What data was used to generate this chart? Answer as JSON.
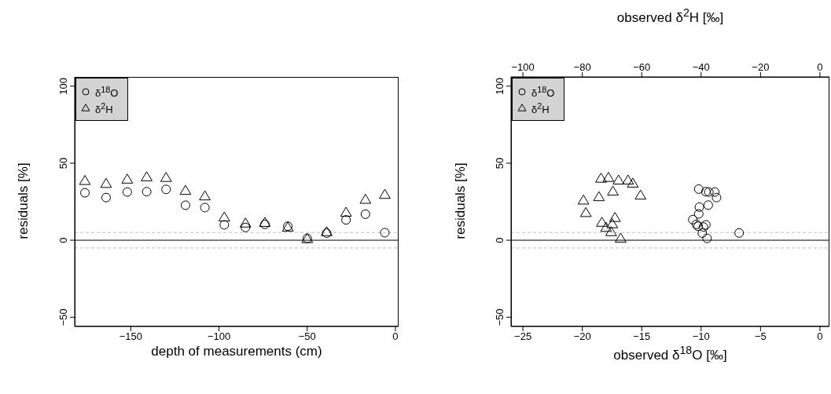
{
  "chart_data": [
    {
      "type": "scatter",
      "xlabel": "depth of measurements (cm)",
      "ylabel": "residuals [%]",
      "xlim": [
        -181.8,
        1.8
      ],
      "xticks": [
        -150,
        -100,
        -50,
        0
      ],
      "ylim": [
        -56,
        106
      ],
      "yticks": [
        -50,
        0,
        50,
        100
      ],
      "legend": "top left",
      "series": [
        {
          "name": "δ$^{18}$O",
          "color": "#000000",
          "marker": "circle",
          "x": [
            -176,
            -164,
            -152,
            -141,
            -130,
            -119,
            -108,
            -97,
            -85,
            -74,
            -61,
            -50,
            -39,
            -28,
            -17,
            -6
          ],
          "values": [
            30.8,
            27.7,
            31.3,
            31.5,
            33.0,
            22.7,
            21.2,
            10.0,
            8.3,
            10.3,
            9.1,
            1.2,
            4.6,
            13.2,
            16.9,
            4.9
          ]
        },
        {
          "name": "δ$^{2}$H",
          "color": "#000000",
          "marker": "triangle",
          "x": [
            -176,
            -164,
            -152,
            -141,
            -130,
            -119,
            -108,
            -97,
            -85,
            -74,
            -61,
            -50,
            -39,
            -28,
            -17,
            -6
          ],
          "values": [
            38.4,
            36.5,
            39.3,
            40.8,
            40.4,
            32.0,
            28.4,
            14.7,
            10.8,
            11.2,
            8.1,
            0.7,
            5.2,
            17.8,
            26.2,
            29.4
          ]
        }
      ],
      "ref_lines": [
        {
          "axis": "y",
          "value": 0,
          "color": "#000000",
          "line_style": "solid"
        },
        {
          "axis": "y",
          "value": 5,
          "color": "#bebebe",
          "line_style": "dashed"
        },
        {
          "axis": "y",
          "value": -5,
          "color": "#bebebe",
          "line_style": "dashed"
        }
      ]
    },
    {
      "type": "scatter",
      "xlabel": "observed δ$^{18}$O [‰]",
      "x2label": "observed δ$^{2}$H [‰]",
      "ylabel": "residuals [%]",
      "xlim": [
        -26,
        0.8
      ],
      "xticks": [
        -25,
        -20,
        -15,
        -10,
        -5,
        0
      ],
      "x2lim": [
        -104,
        3.2
      ],
      "x2ticks": [
        -100,
        -80,
        -60,
        -40,
        -20,
        0
      ],
      "ylim": [
        -56,
        106
      ],
      "yticks": [
        -50,
        0,
        50,
        100
      ],
      "legend": "top left",
      "series": [
        {
          "name": "δ$^{18}$O",
          "color": "#000000",
          "marker": "circle",
          "x": [
            -10.2,
            -9.6,
            -9.35,
            -8.85,
            -8.7,
            -9.4,
            -10.15,
            -10.2,
            -10.7,
            -10.4,
            -10.25,
            -9.8,
            -9.6,
            -9.9,
            -9.5,
            -6.8
          ],
          "values": [
            33.2,
            31.5,
            31.3,
            31.3,
            27.7,
            22.8,
            21.5,
            17.1,
            13.4,
            10.3,
            9.1,
            8.6,
            10.0,
            4.6,
            1.2,
            4.7
          ]
        },
        {
          "name": "δ$^{2}$H",
          "color": "#000000",
          "marker": "triangle",
          "axis": "x2",
          "x": [
            -73.7,
            -71.2,
            -67.8,
            -64.6,
            -63.0,
            -69.7,
            -74.4,
            -60.4,
            -79.6,
            -78.8,
            -73.4,
            -69.0,
            -69.9,
            -72.0,
            -70.3,
            -67.1
          ],
          "values": [
            39.9,
            40.4,
            38.7,
            38.7,
            36.7,
            31.5,
            27.9,
            28.9,
            25.7,
            17.6,
            11.3,
            14.4,
            10.3,
            8.0,
            5.2,
            1.0
          ]
        }
      ],
      "ref_lines": [
        {
          "axis": "y",
          "value": 0,
          "color": "#000000",
          "line_style": "solid"
        },
        {
          "axis": "y",
          "value": 5,
          "color": "#bebebe",
          "line_style": "dashed"
        },
        {
          "axis": "y",
          "value": -5,
          "color": "#bebebe",
          "line_style": "dashed"
        }
      ]
    }
  ]
}
